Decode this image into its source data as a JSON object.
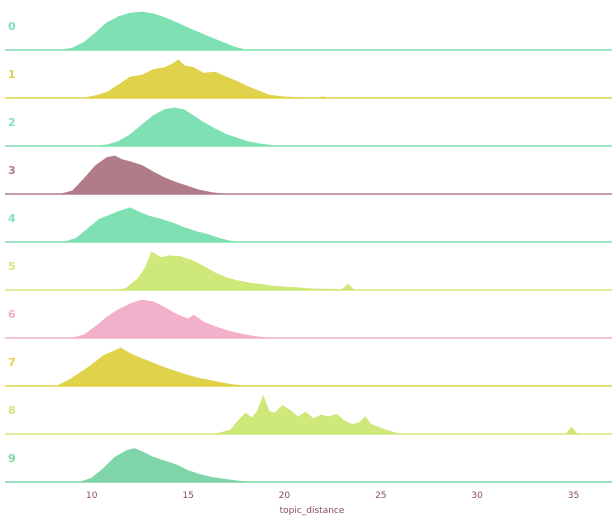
{
  "chart_data": {
    "type": "area",
    "subtype": "ridgeline",
    "xlabel": "topic_distance",
    "xlim": [
      5.5,
      37
    ],
    "xticks": [
      10,
      15,
      20,
      25,
      30,
      35
    ],
    "grid": false,
    "legend": "none",
    "series": [
      {
        "name": "0",
        "color": "#7fe0b3",
        "points": [
          [
            8.4,
            0
          ],
          [
            9,
            0.05
          ],
          [
            9.6,
            0.2
          ],
          [
            10.2,
            0.45
          ],
          [
            10.8,
            0.72
          ],
          [
            11.4,
            0.88
          ],
          [
            12,
            0.97
          ],
          [
            12.6,
            1
          ],
          [
            13.2,
            0.95
          ],
          [
            13.8,
            0.85
          ],
          [
            14.4,
            0.72
          ],
          [
            15,
            0.58
          ],
          [
            15.6,
            0.45
          ],
          [
            16.2,
            0.32
          ],
          [
            16.8,
            0.2
          ],
          [
            17.4,
            0.08
          ],
          [
            18,
            0
          ]
        ]
      },
      {
        "name": "1",
        "color": "#e0d24a",
        "points": [
          [
            9.6,
            0
          ],
          [
            10.2,
            0.06
          ],
          [
            10.8,
            0.15
          ],
          [
            11.4,
            0.35
          ],
          [
            12,
            0.55
          ],
          [
            12.6,
            0.6
          ],
          [
            13.2,
            0.75
          ],
          [
            13.8,
            0.8
          ],
          [
            14.2,
            0.9
          ],
          [
            14.5,
            1
          ],
          [
            14.8,
            0.85
          ],
          [
            15.3,
            0.8
          ],
          [
            15.8,
            0.65
          ],
          [
            16.4,
            0.68
          ],
          [
            17,
            0.55
          ],
          [
            17.6,
            0.42
          ],
          [
            18.1,
            0.3
          ],
          [
            18.6,
            0.2
          ],
          [
            19.2,
            0.08
          ],
          [
            19.6,
            0.05
          ],
          [
            20,
            0.03
          ],
          [
            20.8,
            0.01
          ],
          [
            21.6,
            0
          ],
          [
            22,
            0.03
          ],
          [
            22.3,
            0
          ],
          [
            22.8,
            0
          ]
        ]
      },
      {
        "name": "2",
        "color": "#7fe0b3",
        "points": [
          [
            10.2,
            0
          ],
          [
            10.8,
            0.03
          ],
          [
            11.4,
            0.12
          ],
          [
            12,
            0.3
          ],
          [
            12.6,
            0.55
          ],
          [
            13.2,
            0.8
          ],
          [
            13.8,
            0.96
          ],
          [
            14.3,
            1
          ],
          [
            14.8,
            0.95
          ],
          [
            15.2,
            0.82
          ],
          [
            15.8,
            0.62
          ],
          [
            16.4,
            0.45
          ],
          [
            17,
            0.3
          ],
          [
            17.6,
            0.2
          ],
          [
            18.2,
            0.1
          ],
          [
            18.8,
            0.05
          ],
          [
            19.4,
            0.01
          ],
          [
            19.8,
            0
          ]
        ]
      },
      {
        "name": "3",
        "color": "#b07c87",
        "points": [
          [
            8.4,
            0
          ],
          [
            9,
            0.08
          ],
          [
            9.6,
            0.4
          ],
          [
            10.2,
            0.75
          ],
          [
            10.8,
            0.96
          ],
          [
            11.2,
            1
          ],
          [
            11.6,
            0.9
          ],
          [
            12,
            0.85
          ],
          [
            12.6,
            0.75
          ],
          [
            13.2,
            0.58
          ],
          [
            13.8,
            0.42
          ],
          [
            14.4,
            0.3
          ],
          [
            15,
            0.2
          ],
          [
            15.6,
            0.1
          ],
          [
            16.2,
            0.04
          ],
          [
            16.8,
            0
          ]
        ]
      },
      {
        "name": "4",
        "color": "#7fe0b3",
        "points": [
          [
            8.6,
            0
          ],
          [
            9.2,
            0.1
          ],
          [
            9.8,
            0.35
          ],
          [
            10.4,
            0.6
          ],
          [
            11,
            0.72
          ],
          [
            11.5,
            0.82
          ],
          [
            12,
            0.9
          ],
          [
            12.4,
            0.8
          ],
          [
            13,
            0.68
          ],
          [
            13.6,
            0.6
          ],
          [
            14.2,
            0.5
          ],
          [
            14.8,
            0.38
          ],
          [
            15.4,
            0.28
          ],
          [
            16,
            0.2
          ],
          [
            16.6,
            0.1
          ],
          [
            17.2,
            0.02
          ],
          [
            17.6,
            0
          ]
        ]
      },
      {
        "name": "5",
        "color": "#cfe87a",
        "points": [
          [
            11.4,
            0
          ],
          [
            11.8,
            0.05
          ],
          [
            12.4,
            0.3
          ],
          [
            12.8,
            0.6
          ],
          [
            13.1,
            1
          ],
          [
            13.6,
            0.85
          ],
          [
            14,
            0.9
          ],
          [
            14.6,
            0.88
          ],
          [
            15.2,
            0.78
          ],
          [
            15.8,
            0.62
          ],
          [
            16.4,
            0.45
          ],
          [
            17,
            0.32
          ],
          [
            17.6,
            0.24
          ],
          [
            18.2,
            0.18
          ],
          [
            18.8,
            0.15
          ],
          [
            19.4,
            0.1
          ],
          [
            20,
            0.08
          ],
          [
            20.6,
            0.06
          ],
          [
            21.2,
            0.04
          ],
          [
            21.8,
            0.02
          ],
          [
            22.4,
            0.02
          ],
          [
            22.8,
            0.01
          ],
          [
            23,
            0.02
          ],
          [
            23.3,
            0.15
          ],
          [
            23.6,
            0.01
          ],
          [
            24,
            0
          ]
        ]
      },
      {
        "name": "6",
        "color": "#f2b0cb",
        "points": [
          [
            9,
            0
          ],
          [
            9.6,
            0.08
          ],
          [
            10.2,
            0.3
          ],
          [
            10.8,
            0.55
          ],
          [
            11.4,
            0.75
          ],
          [
            12,
            0.9
          ],
          [
            12.6,
            1
          ],
          [
            13.2,
            0.95
          ],
          [
            13.8,
            0.8
          ],
          [
            14.4,
            0.62
          ],
          [
            15,
            0.5
          ],
          [
            15.3,
            0.6
          ],
          [
            15.8,
            0.42
          ],
          [
            16.4,
            0.3
          ],
          [
            17,
            0.2
          ],
          [
            17.6,
            0.12
          ],
          [
            18.2,
            0.06
          ],
          [
            18.8,
            0.02
          ],
          [
            19.4,
            0
          ]
        ]
      },
      {
        "name": "7",
        "color": "#e0d24a",
        "points": [
          [
            8.2,
            0
          ],
          [
            8.8,
            0.15
          ],
          [
            9.4,
            0.35
          ],
          [
            10,
            0.55
          ],
          [
            10.6,
            0.8
          ],
          [
            11.2,
            0.93
          ],
          [
            11.5,
            1
          ],
          [
            12,
            0.85
          ],
          [
            12.6,
            0.72
          ],
          [
            13.2,
            0.6
          ],
          [
            13.8,
            0.48
          ],
          [
            14.4,
            0.38
          ],
          [
            15,
            0.28
          ],
          [
            15.6,
            0.2
          ],
          [
            16.2,
            0.14
          ],
          [
            16.8,
            0.08
          ],
          [
            17.4,
            0.03
          ],
          [
            18,
            0
          ]
        ]
      },
      {
        "name": "8",
        "color": "#cfe87a",
        "points": [
          [
            16.4,
            0
          ],
          [
            16.8,
            0.05
          ],
          [
            17.2,
            0.1
          ],
          [
            17.6,
            0.35
          ],
          [
            18,
            0.55
          ],
          [
            18.3,
            0.42
          ],
          [
            18.6,
            0.6
          ],
          [
            18.9,
            1
          ],
          [
            19.2,
            0.6
          ],
          [
            19.5,
            0.55
          ],
          [
            19.9,
            0.75
          ],
          [
            20.3,
            0.62
          ],
          [
            20.7,
            0.45
          ],
          [
            21.1,
            0.58
          ],
          [
            21.5,
            0.4
          ],
          [
            21.9,
            0.5
          ],
          [
            22.3,
            0.45
          ],
          [
            22.7,
            0.52
          ],
          [
            23.1,
            0.35
          ],
          [
            23.5,
            0.25
          ],
          [
            23.9,
            0.3
          ],
          [
            24.2,
            0.45
          ],
          [
            24.5,
            0.25
          ],
          [
            24.9,
            0.18
          ],
          [
            25.3,
            0.1
          ],
          [
            25.7,
            0.04
          ],
          [
            26,
            0
          ],
          [
            34.6,
            0
          ],
          [
            34.9,
            0.18
          ],
          [
            35.2,
            0
          ]
        ]
      },
      {
        "name": "9",
        "color": "#7fd4a8",
        "points": [
          [
            9.4,
            0
          ],
          [
            10,
            0.1
          ],
          [
            10.6,
            0.35
          ],
          [
            11.2,
            0.65
          ],
          [
            11.8,
            0.82
          ],
          [
            12.2,
            0.88
          ],
          [
            12.6,
            0.8
          ],
          [
            13.2,
            0.65
          ],
          [
            13.8,
            0.55
          ],
          [
            14.4,
            0.45
          ],
          [
            15,
            0.3
          ],
          [
            15.6,
            0.2
          ],
          [
            16.2,
            0.12
          ],
          [
            16.8,
            0.08
          ],
          [
            17.4,
            0.04
          ],
          [
            18,
            0
          ]
        ]
      }
    ]
  }
}
